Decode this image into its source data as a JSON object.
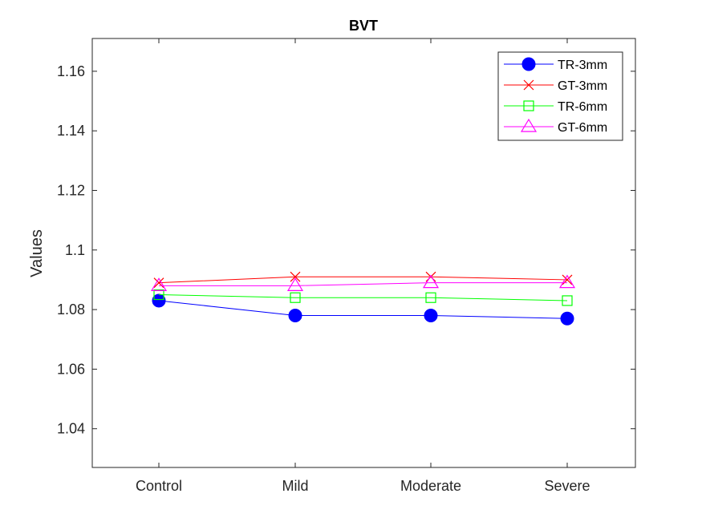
{
  "chart_data": {
    "type": "line",
    "title": "BVT",
    "xlabel": "",
    "ylabel": "Values",
    "categories": [
      "Control",
      "Mild",
      "Moderate",
      "Severe"
    ],
    "ylim": [
      1.027,
      1.171
    ],
    "yticks": [
      1.04,
      1.06,
      1.08,
      1.1,
      1.12,
      1.14,
      1.16
    ],
    "ytick_labels": [
      "1.04",
      "1.06",
      "1.08",
      "1.1",
      "1.12",
      "1.14",
      "1.16"
    ],
    "grid": false,
    "legend_position": "top-right",
    "series": [
      {
        "name": "TR-3mm",
        "color": "#0000ff",
        "marker": "filled-circle",
        "values": [
          1.083,
          1.078,
          1.078,
          1.077
        ]
      },
      {
        "name": "GT-3mm",
        "color": "#ff0000",
        "marker": "x",
        "values": [
          1.089,
          1.091,
          1.091,
          1.09
        ]
      },
      {
        "name": "TR-6mm",
        "color": "#00ff00",
        "marker": "open-square",
        "values": [
          1.085,
          1.084,
          1.084,
          1.083
        ]
      },
      {
        "name": "GT-6mm",
        "color": "#ff00ff",
        "marker": "open-triangle",
        "values": [
          1.088,
          1.088,
          1.089,
          1.089
        ]
      }
    ]
  }
}
